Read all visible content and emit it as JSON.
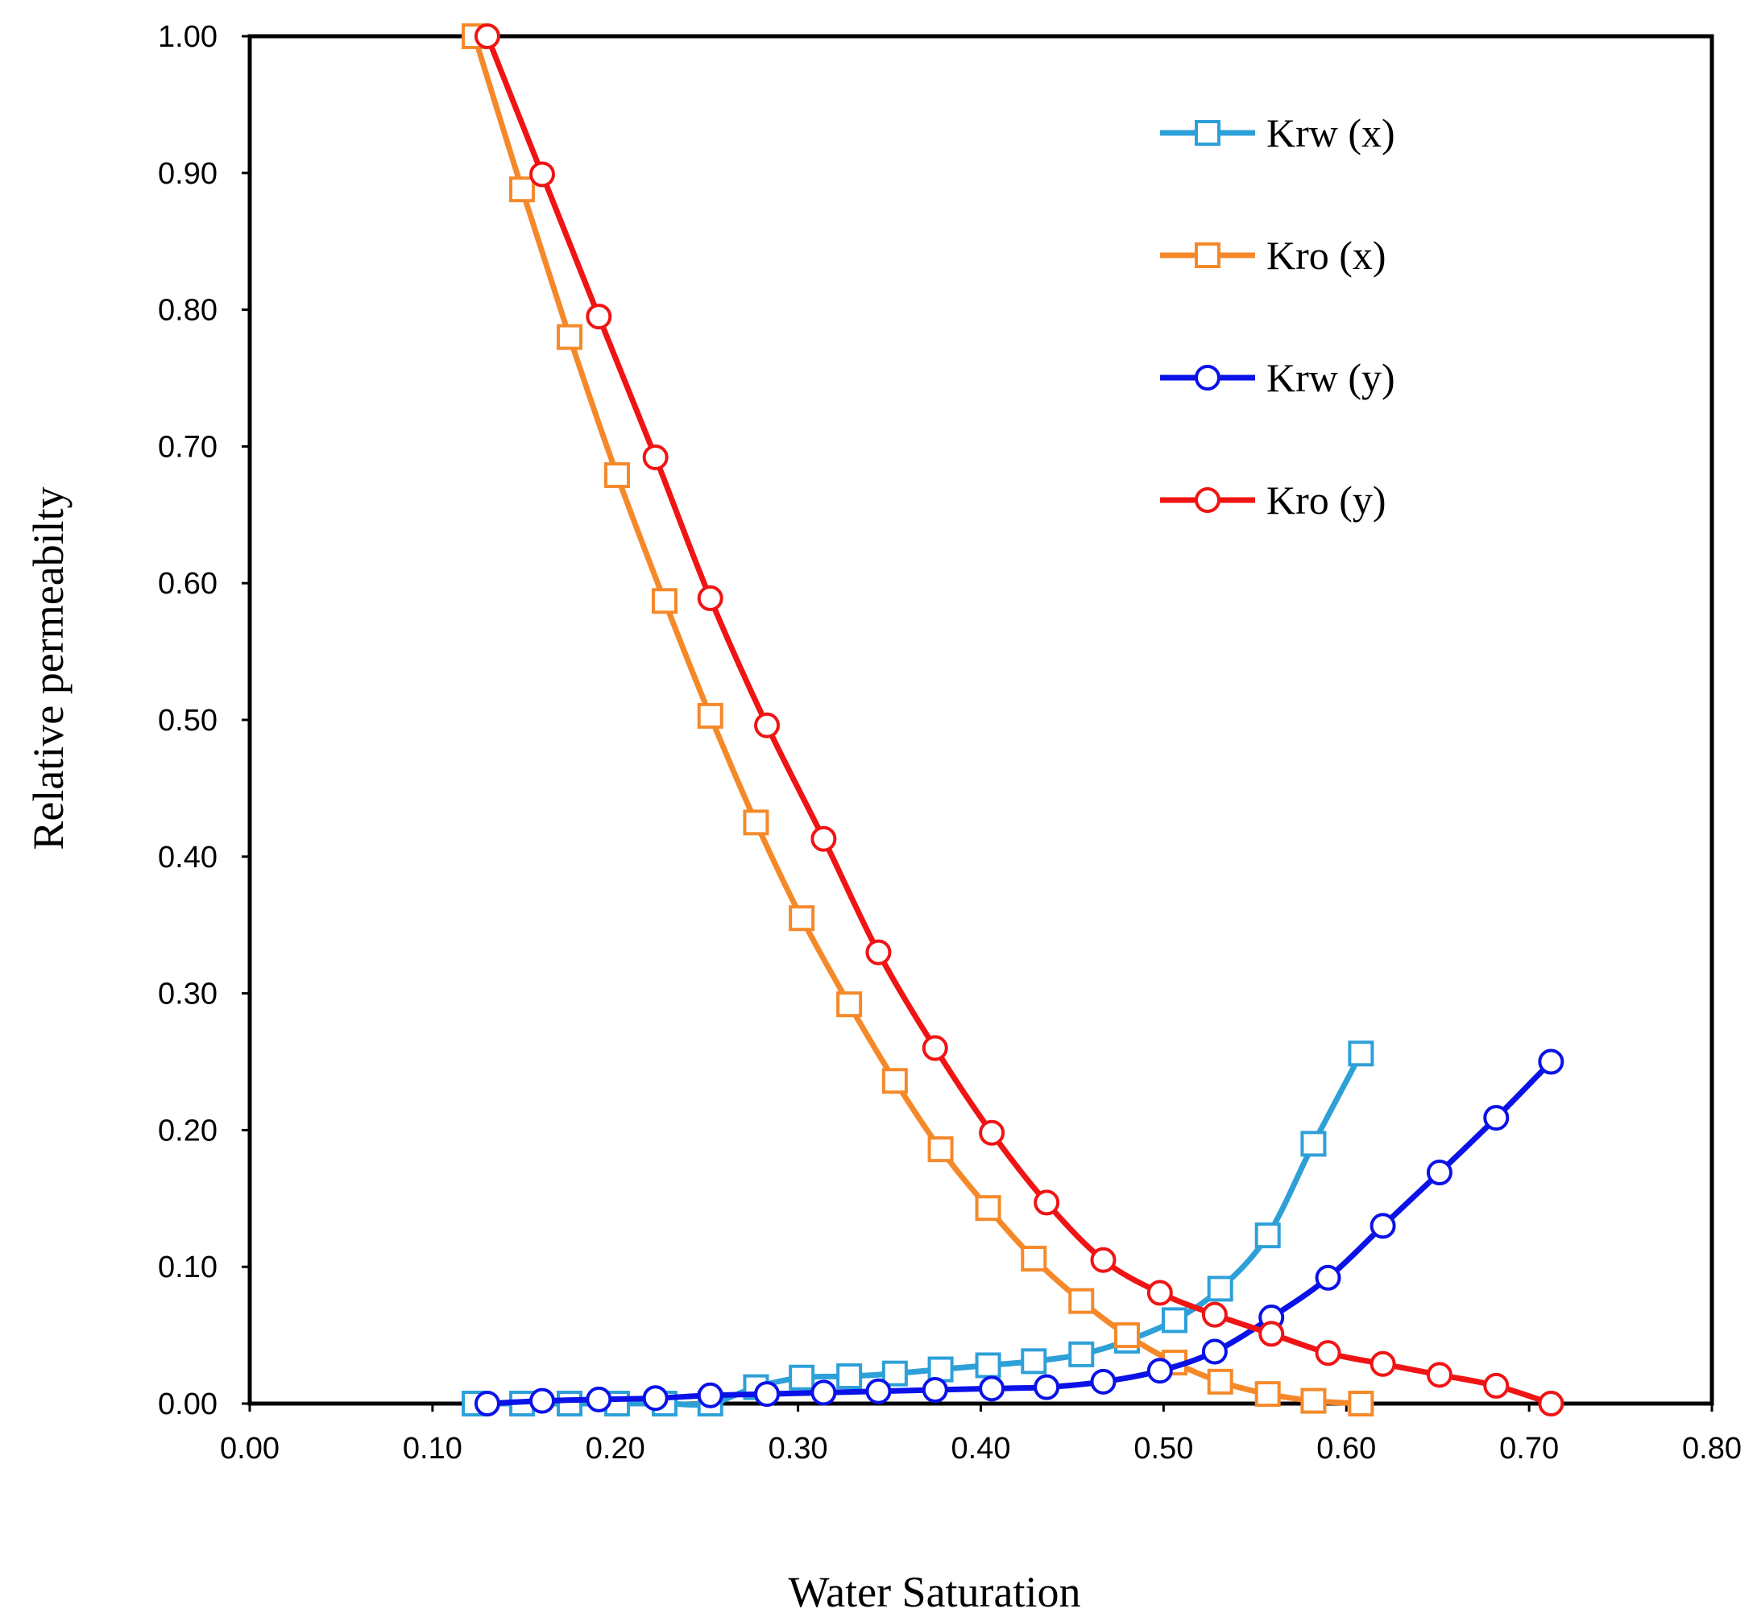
{
  "chart_data": {
    "type": "scatter",
    "title": "",
    "xlabel": "Water Saturation",
    "ylabel": "Relative permeabilty",
    "xlim": [
      0,
      0.8
    ],
    "ylim": [
      0,
      1
    ],
    "grid": false,
    "legend_position": "top-right",
    "x_ticks": [
      "0.00",
      "0.10",
      "0.20",
      "0.30",
      "0.40",
      "0.50",
      "0.60",
      "0.70",
      "0.80"
    ],
    "y_ticks": [
      "0.00",
      "0.10",
      "0.20",
      "0.30",
      "0.40",
      "0.50",
      "0.60",
      "0.70",
      "0.80",
      "0.90",
      "1.00"
    ],
    "series": [
      {
        "name": "Krw (x)",
        "color": "#2ea0d8",
        "marker": "square",
        "x": [
          0.123,
          0.149,
          0.175,
          0.201,
          0.227,
          0.252,
          0.277,
          0.302,
          0.328,
          0.353,
          0.378,
          0.404,
          0.429,
          0.455,
          0.48,
          0.506,
          0.531,
          0.557,
          0.582,
          0.608
        ],
        "y": [
          0.0,
          0.0,
          0.0,
          0.0,
          0.0,
          0.0,
          0.012,
          0.019,
          0.02,
          0.022,
          0.025,
          0.028,
          0.031,
          0.036,
          0.046,
          0.061,
          0.084,
          0.123,
          0.19,
          0.256
        ]
      },
      {
        "name": "Kro (x)",
        "color": "#f5892a",
        "marker": "square",
        "x": [
          0.123,
          0.149,
          0.175,
          0.201,
          0.227,
          0.252,
          0.277,
          0.302,
          0.328,
          0.353,
          0.378,
          0.404,
          0.429,
          0.455,
          0.48,
          0.506,
          0.531,
          0.557,
          0.582,
          0.608
        ],
        "y": [
          1.0,
          0.888,
          0.78,
          0.679,
          0.587,
          0.503,
          0.425,
          0.355,
          0.292,
          0.236,
          0.186,
          0.143,
          0.106,
          0.075,
          0.05,
          0.03,
          0.016,
          0.007,
          0.002,
          0.0
        ]
      },
      {
        "name": "Krw (y)",
        "color": "#0a12e8",
        "marker": "circle",
        "x": [
          0.13,
          0.16,
          0.191,
          0.222,
          0.252,
          0.283,
          0.314,
          0.344,
          0.375,
          0.406,
          0.436,
          0.467,
          0.498,
          0.528,
          0.559,
          0.59,
          0.62,
          0.651,
          0.682,
          0.712
        ],
        "y": [
          0.0,
          0.002,
          0.003,
          0.004,
          0.006,
          0.007,
          0.008,
          0.009,
          0.01,
          0.011,
          0.012,
          0.016,
          0.024,
          0.038,
          0.063,
          0.092,
          0.13,
          0.169,
          0.209,
          0.25
        ]
      },
      {
        "name": "Kro (y)",
        "color": "#f01414",
        "marker": "circle",
        "x": [
          0.13,
          0.16,
          0.191,
          0.222,
          0.252,
          0.283,
          0.314,
          0.344,
          0.375,
          0.406,
          0.436,
          0.467,
          0.498,
          0.528,
          0.559,
          0.59,
          0.62,
          0.651,
          0.682,
          0.712
        ],
        "y": [
          1.0,
          0.899,
          0.795,
          0.692,
          0.589,
          0.496,
          0.413,
          0.33,
          0.26,
          0.198,
          0.147,
          0.105,
          0.081,
          0.065,
          0.051,
          0.037,
          0.029,
          0.021,
          0.013,
          0.0
        ]
      }
    ]
  }
}
